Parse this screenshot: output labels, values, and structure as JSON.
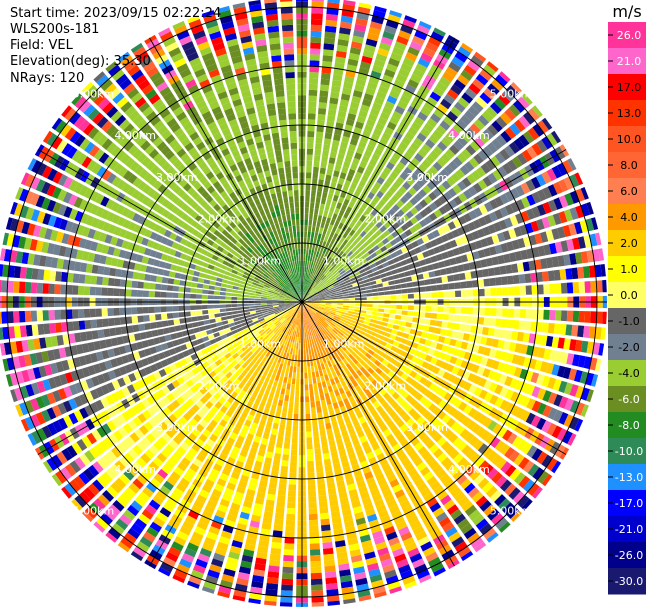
{
  "info": {
    "start_time": "Start time: 2023/09/15 02:22:24",
    "instrument": "WLS200s-181",
    "field": "Field: VEL",
    "elevation": "Elevation(deg): 35.30",
    "nrays": "NRays: 120"
  },
  "chart_data": {
    "type": "heatmap",
    "projection": "polar-ppi",
    "field": "VEL",
    "units": "m/s",
    "range_rings_km": [
      1.0,
      2.0,
      3.0,
      4.0,
      5.0
    ],
    "range_ring_labels": [
      "1.00km",
      "2.00km",
      "3.00km",
      "4.00km",
      "5.00km"
    ],
    "max_range_km": 6.0,
    "n_rays": 120,
    "elevation_deg": 35.3,
    "spoke_angles_deg": [
      0,
      30,
      60,
      90,
      120,
      150,
      180,
      210,
      240,
      270,
      300,
      330
    ],
    "wind_pattern": {
      "description": "approaching flow from north-northwest, receding flow toward south-southeast",
      "approaching_peak_m_s": -8.0,
      "receding_peak_m_s": 6.0,
      "noise_beyond_km": 4.5
    },
    "colorbar": {
      "unit_label": "m/s",
      "tick_labels": [
        "26.0",
        "21.0",
        "17.0",
        "13.0",
        "10.0",
        "8.0",
        "6.0",
        "4.0",
        "2.0",
        "1.0",
        "0.0",
        "-1.0",
        "-2.0",
        "-4.0",
        "-6.0",
        "-8.0",
        "-10.0",
        "-13.0",
        "-17.0",
        "-21.0",
        "-26.0",
        "-30.0"
      ],
      "bins": [
        {
          "lo": 26,
          "hi": 30,
          "color": "#ff3399"
        },
        {
          "lo": 21,
          "hi": 26,
          "color": "#ff66cc"
        },
        {
          "lo": 17,
          "hi": 21,
          "color": "#ff0000"
        },
        {
          "lo": 13,
          "hi": 17,
          "color": "#ff3300"
        },
        {
          "lo": 10,
          "hi": 13,
          "color": "#ff5522"
        },
        {
          "lo": 8,
          "hi": 10,
          "color": "#ff6633"
        },
        {
          "lo": 6,
          "hi": 8,
          "color": "#ff7f50"
        },
        {
          "lo": 4,
          "hi": 6,
          "color": "#ff9900"
        },
        {
          "lo": 2,
          "hi": 4,
          "color": "#ffcc00"
        },
        {
          "lo": 1,
          "hi": 2,
          "color": "#ffff00"
        },
        {
          "lo": 0,
          "hi": 1,
          "color": "#ffff66"
        },
        {
          "lo": -1,
          "hi": 0,
          "color": "#666666"
        },
        {
          "lo": -2,
          "hi": -1,
          "color": "#708090"
        },
        {
          "lo": -4,
          "hi": -2,
          "color": "#9acd32"
        },
        {
          "lo": -6,
          "hi": -4,
          "color": "#6b8e23"
        },
        {
          "lo": -8,
          "hi": -6,
          "color": "#228b22"
        },
        {
          "lo": -10,
          "hi": -8,
          "color": "#2e8b57"
        },
        {
          "lo": -13,
          "hi": -10,
          "color": "#1e90ff"
        },
        {
          "lo": -17,
          "hi": -13,
          "color": "#0000ff"
        },
        {
          "lo": -21,
          "hi": -17,
          "color": "#0000cd"
        },
        {
          "lo": -26,
          "hi": -21,
          "color": "#00008b"
        },
        {
          "lo": -30,
          "hi": -26,
          "color": "#191970"
        }
      ]
    }
  }
}
